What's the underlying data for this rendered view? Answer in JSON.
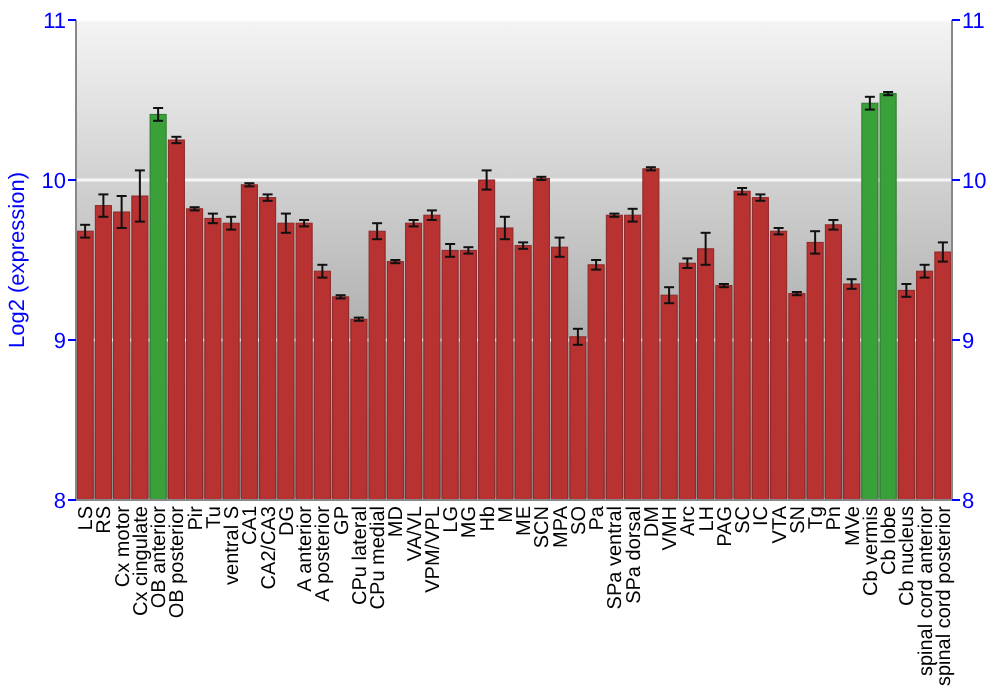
{
  "chart_data": {
    "type": "bar",
    "ylabel": "Log2 (expression)",
    "categories": [
      "LS",
      "RS",
      "Cx motor",
      "Cx cingulate",
      "OB anterior",
      "OB posterior",
      "Pir",
      "Tu",
      "ventral S",
      "CA1",
      "CA2/CA3",
      "DG",
      "A anterior",
      "A posterior",
      "GP",
      "CPu lateral",
      "CPu medial",
      "MD",
      "VA/VL",
      "VPM/VPL",
      "LG",
      "MG",
      "Hb",
      "M",
      "ME",
      "SCN",
      "MPA",
      "SO",
      "Pa",
      "SPa ventral",
      "SPa dorsal",
      "DM",
      "VMH",
      "Arc",
      "LH",
      "PAG",
      "SC",
      "IC",
      "VTA",
      "SN",
      "Tg",
      "Pn",
      "MVe",
      "Cb vermis",
      "Cb lobe",
      "Cb nucleus",
      "spinal cord anterior",
      "spinal cord posterior"
    ],
    "values": [
      9.68,
      9.84,
      9.8,
      9.9,
      10.41,
      10.25,
      9.82,
      9.76,
      9.73,
      9.97,
      9.89,
      9.73,
      9.73,
      9.43,
      9.27,
      9.13,
      9.68,
      9.49,
      9.73,
      9.78,
      9.56,
      9.56,
      10.0,
      9.7,
      9.59,
      10.01,
      9.58,
      9.02,
      9.47,
      9.78,
      9.78,
      10.07,
      9.28,
      9.48,
      9.57,
      9.34,
      9.93,
      9.89,
      9.68,
      9.29,
      9.61,
      9.72,
      9.35,
      10.48,
      10.54,
      9.31,
      9.43,
      9.55
    ],
    "errors": [
      0.04,
      0.07,
      0.1,
      0.16,
      0.04,
      0.02,
      0.01,
      0.03,
      0.04,
      0.01,
      0.02,
      0.06,
      0.02,
      0.04,
      0.01,
      0.01,
      0.05,
      0.01,
      0.02,
      0.03,
      0.04,
      0.02,
      0.06,
      0.07,
      0.02,
      0.01,
      0.06,
      0.05,
      0.03,
      0.01,
      0.04,
      0.01,
      0.05,
      0.03,
      0.1,
      0.01,
      0.02,
      0.02,
      0.02,
      0.01,
      0.07,
      0.03,
      0.03,
      0.04,
      0.01,
      0.04,
      0.04,
      0.06
    ],
    "colors": [
      "#b83232",
      "#b83232",
      "#b83232",
      "#b83232",
      "#3aa03a",
      "#b83232",
      "#b83232",
      "#b83232",
      "#b83232",
      "#b83232",
      "#b83232",
      "#b83232",
      "#b83232",
      "#b83232",
      "#b83232",
      "#b83232",
      "#b83232",
      "#b83232",
      "#b83232",
      "#b83232",
      "#b83232",
      "#b83232",
      "#b83232",
      "#b83232",
      "#b83232",
      "#b83232",
      "#b83232",
      "#b83232",
      "#b83232",
      "#b83232",
      "#b83232",
      "#b83232",
      "#b83232",
      "#b83232",
      "#b83232",
      "#b83232",
      "#b83232",
      "#b83232",
      "#b83232",
      "#b83232",
      "#b83232",
      "#b83232",
      "#b83232",
      "#3aa03a",
      "#3aa03a",
      "#b83232",
      "#b83232",
      "#b83232"
    ],
    "ylim": [
      8,
      11
    ],
    "yticks": [
      8,
      9,
      10,
      11
    ],
    "y2lim": [
      8,
      11
    ],
    "y2ticks": [
      8,
      9,
      10,
      11
    ],
    "grid": "y"
  }
}
